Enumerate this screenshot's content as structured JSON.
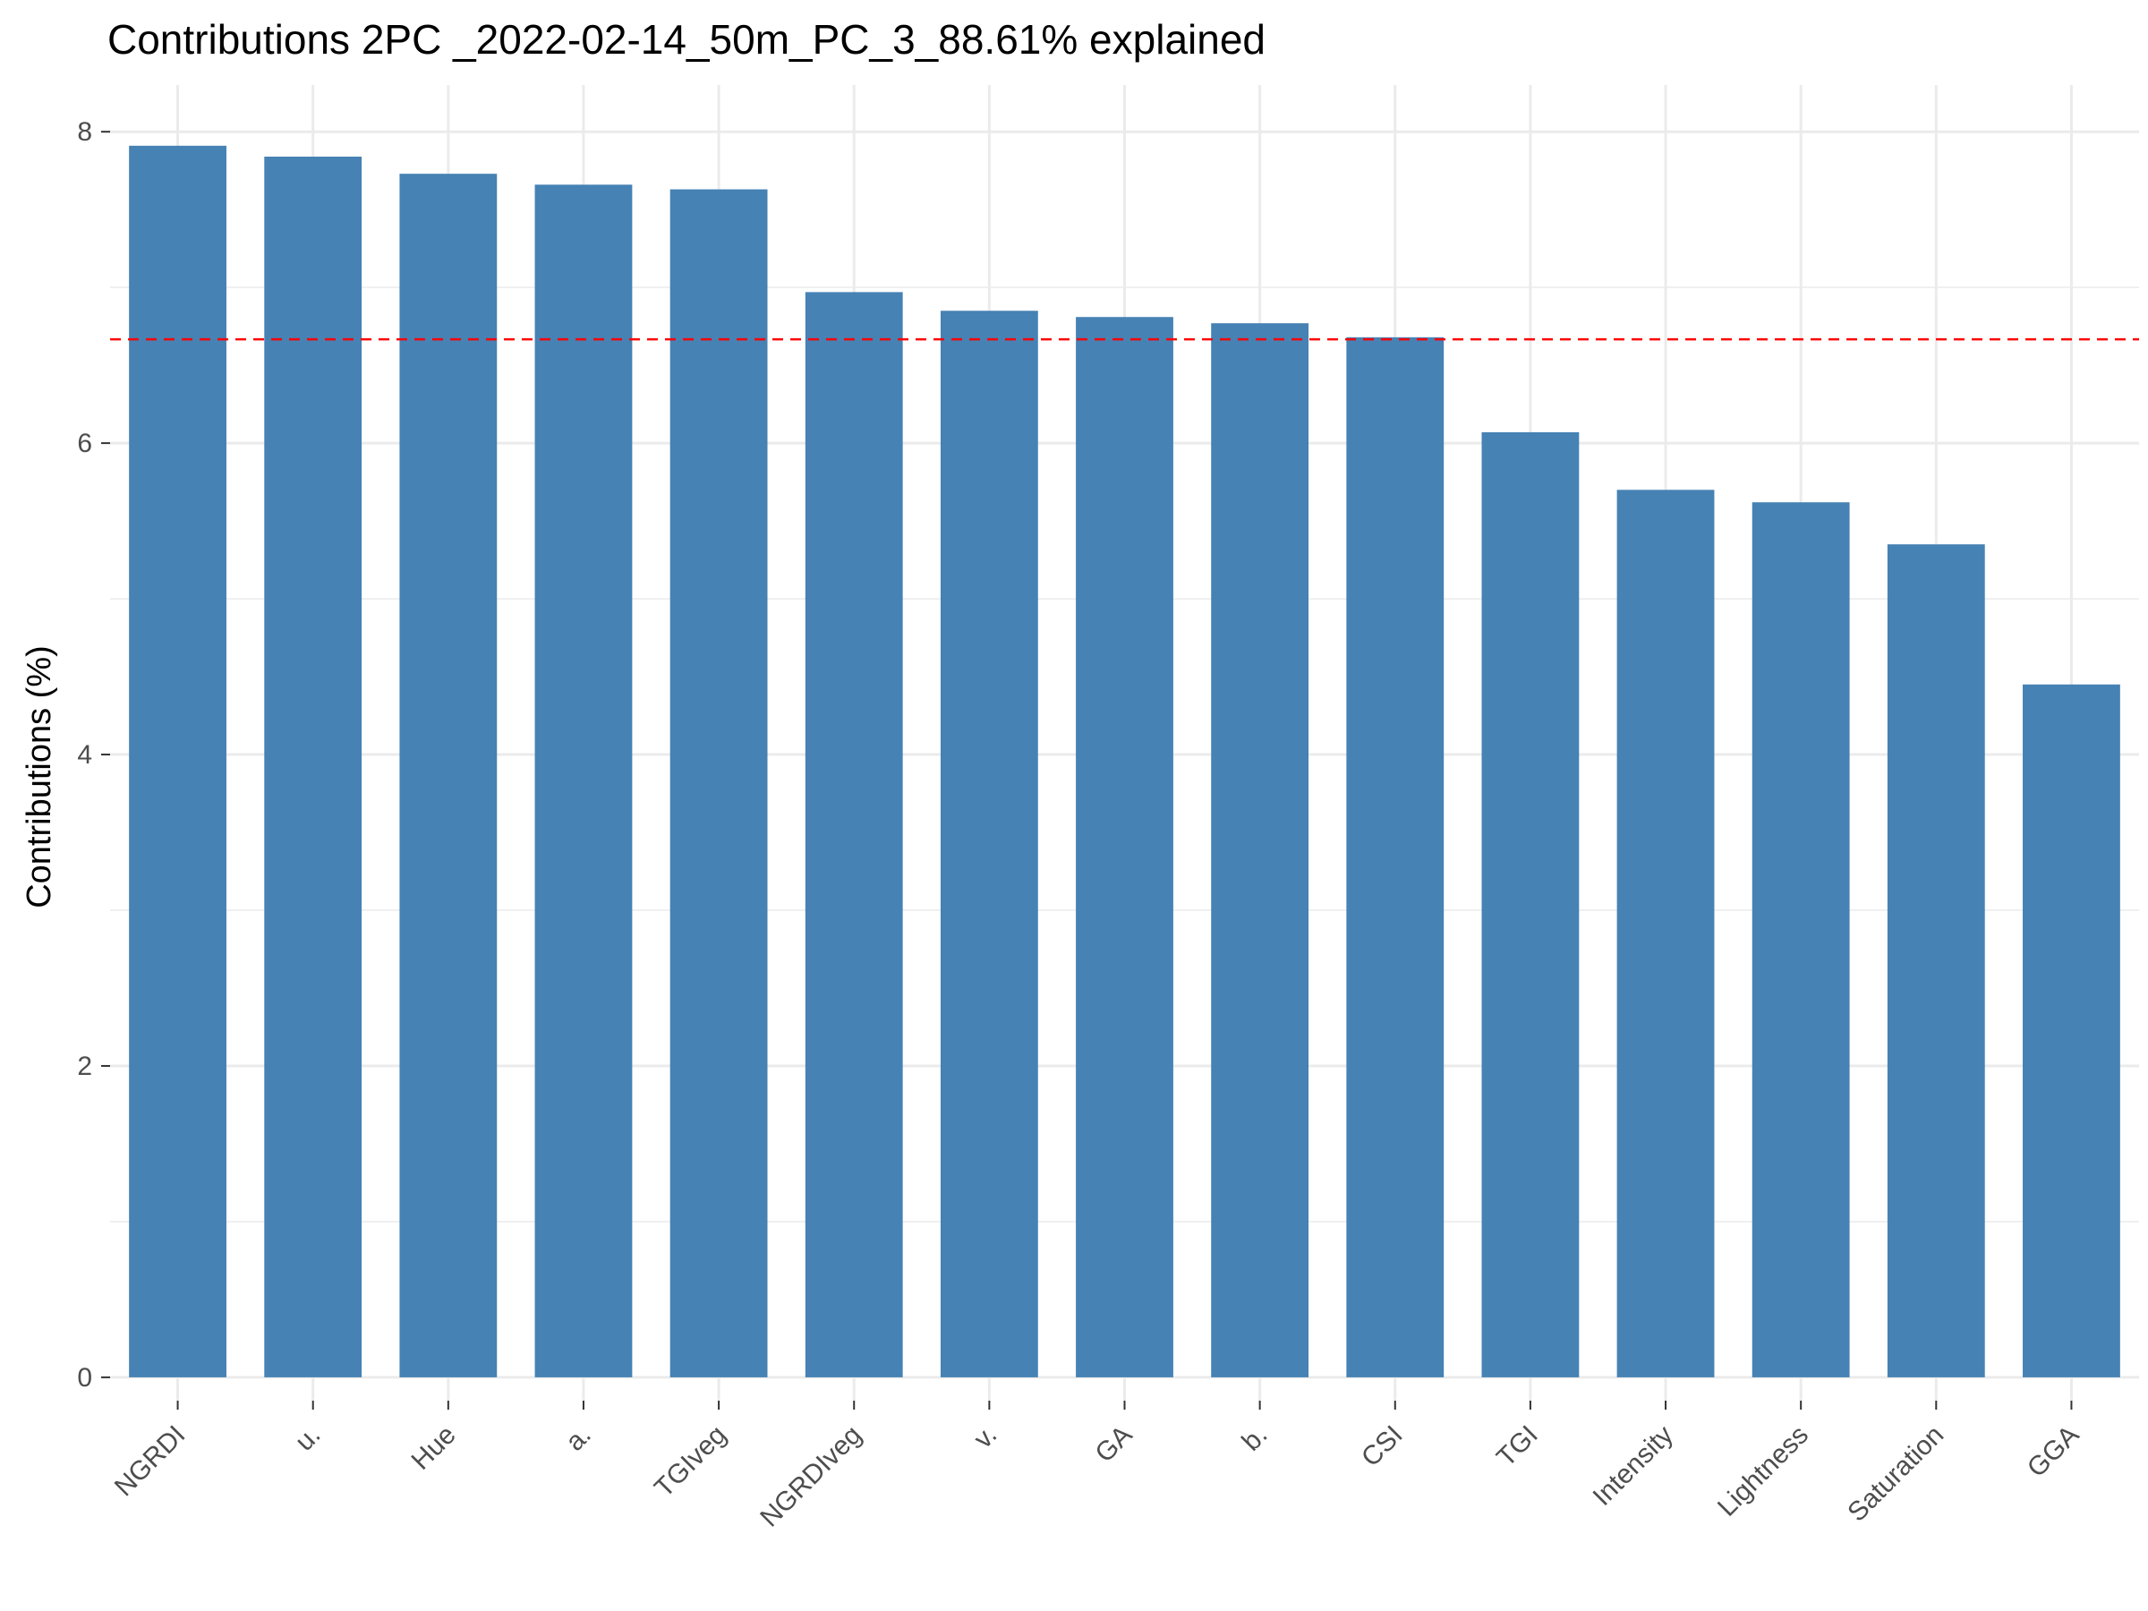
{
  "chart_data": {
    "type": "bar",
    "title": "Contributions 2PC _2022-02-14_50m_PC_3_88.61% explained",
    "xlabel": "",
    "ylabel": "Contributions (%)",
    "categories": [
      "NGRDI",
      "u.",
      "Hue",
      "a.",
      "TGIveg",
      "NGRDIveg",
      "v.",
      "GA",
      "b.",
      "CSI",
      "TGI",
      "Intensity",
      "Lightness",
      "Saturation",
      "GGA"
    ],
    "values": [
      7.91,
      7.84,
      7.73,
      7.66,
      7.63,
      6.97,
      6.85,
      6.81,
      6.77,
      6.68,
      6.07,
      5.7,
      5.62,
      5.35,
      4.45
    ],
    "reference_line": 6.667,
    "ylim": [
      -0.15,
      8.3
    ],
    "yticks": [
      0,
      2,
      4,
      6,
      8
    ],
    "ytick_labels": [
      "0",
      "2",
      "4",
      "6",
      "8"
    ],
    "grid": true,
    "colors": {
      "bar": "#4682B4",
      "reference_line": "#FF0000",
      "grid": "#EBEBEB"
    }
  }
}
